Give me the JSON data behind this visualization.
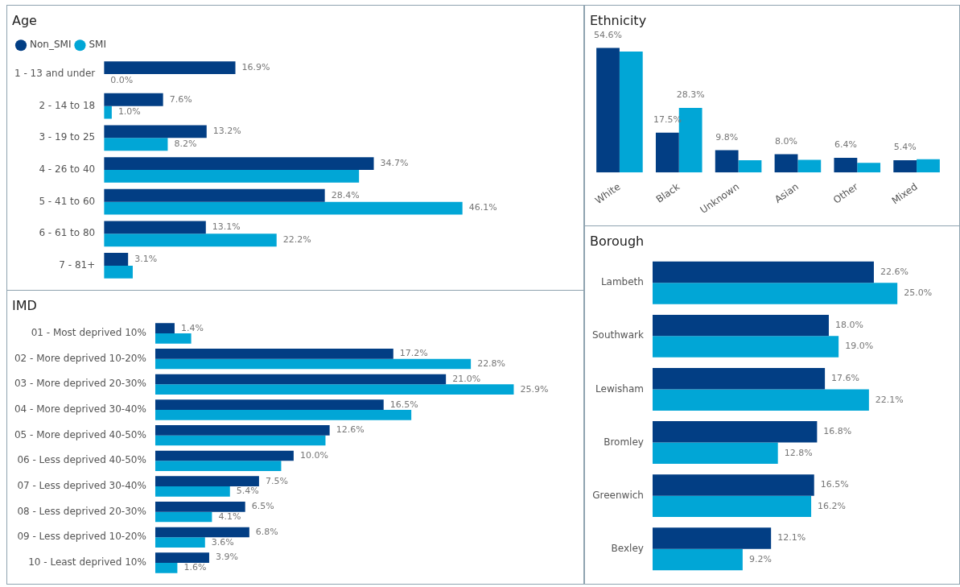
{
  "chart_data": [
    {
      "type": "bar",
      "title": "Age",
      "orientation": "horizontal",
      "legend": "top left",
      "tick_labels": "y",
      "categories": [
        "1 - 13 and under",
        "2 - 14 to 18",
        "3 - 19 to 25",
        "4 - 26 to 40",
        "5 - 41 to 60",
        "6 - 61 to 80",
        "7 - 81+"
      ],
      "series": [
        {
          "name": "Non_SMI",
          "color": "#023e84",
          "values": [
            16.9,
            7.6,
            13.2,
            34.7,
            28.4,
            13.1,
            3.1
          ],
          "value_labels": [
            "16.9%",
            "7.6%",
            "13.2%",
            "34.7%",
            "28.4%",
            "13.1%",
            "3.1%"
          ]
        },
        {
          "name": "SMI",
          "color": "#01a6d6",
          "values": [
            0.0,
            1.0,
            8.2,
            32.8,
            46.1,
            22.2,
            3.7
          ],
          "value_labels": [
            "0.0%",
            "1.0%",
            "8.2%",
            null,
            "46.1%",
            "22.2%",
            null
          ]
        }
      ]
    },
    {
      "type": "bar",
      "title": "Ethnicity",
      "tick_labels": "x",
      "categories": [
        "White",
        "Black",
        "Unknown",
        "Asian",
        "Other",
        "Mixed"
      ],
      "series": [
        {
          "color": "#023e84",
          "values": [
            54.6,
            17.5,
            9.8,
            8.0,
            6.4,
            5.4
          ],
          "value_labels": [
            "54.6%",
            "17.5%",
            "9.8%",
            "8.0%",
            "6.4%",
            "5.4%"
          ]
        },
        {
          "color": "#01a6d6",
          "values": [
            53.0,
            28.3,
            5.4,
            5.6,
            4.2,
            5.8
          ],
          "value_labels": [
            null,
            "28.3%",
            null,
            null,
            null,
            null
          ]
        }
      ]
    },
    {
      "type": "bar",
      "title": "IMD",
      "orientation": "horizontal",
      "tick_labels": "y",
      "categories": [
        "01 - Most deprived 10%",
        "02 - More deprived 10-20%",
        "03 - More deprived 20-30%",
        "04 - More deprived 30-40%",
        "05 - More deprived 40-50%",
        "06 - Less deprived 40-50%",
        "07 - Less deprived 30-40%",
        "08 - Less deprived 20-30%",
        "09 - Less deprived 10-20%",
        "10 - Least deprived 10%"
      ],
      "series": [
        {
          "color": "#023e84",
          "values": [
            1.4,
            17.2,
            21.0,
            16.5,
            12.6,
            10.0,
            7.5,
            6.5,
            6.8,
            3.9
          ],
          "value_labels": [
            "1.4%",
            "17.2%",
            "21.0%",
            "16.5%",
            "12.6%",
            "10.0%",
            "7.5%",
            "6.5%",
            "6.8%",
            "3.9%"
          ]
        },
        {
          "color": "#01a6d6",
          "values": [
            2.6,
            22.8,
            25.9,
            18.5,
            12.3,
            9.1,
            5.4,
            4.1,
            3.6,
            1.6
          ],
          "value_labels": [
            null,
            "22.8%",
            "25.9%",
            null,
            null,
            null,
            "5.4%",
            "4.1%",
            "3.6%",
            "1.6%"
          ]
        }
      ]
    },
    {
      "type": "bar",
      "title": "Borough",
      "orientation": "horizontal",
      "tick_labels": "y",
      "categories": [
        "Lambeth",
        "Southwark",
        "Lewisham",
        "Bromley",
        "Greenwich",
        "Bexley"
      ],
      "series": [
        {
          "color": "#023e84",
          "values": [
            22.6,
            18.0,
            17.6,
            16.8,
            16.5,
            12.1
          ],
          "value_labels": [
            "22.6%",
            "18.0%",
            "17.6%",
            "16.8%",
            "16.5%",
            "12.1%"
          ]
        },
        {
          "color": "#01a6d6",
          "values": [
            25.0,
            19.0,
            22.1,
            12.8,
            16.2,
            9.2
          ],
          "value_labels": [
            "25.0%",
            "19.0%",
            "22.1%",
            "12.8%",
            "16.2%",
            "9.2%"
          ]
        }
      ]
    }
  ]
}
